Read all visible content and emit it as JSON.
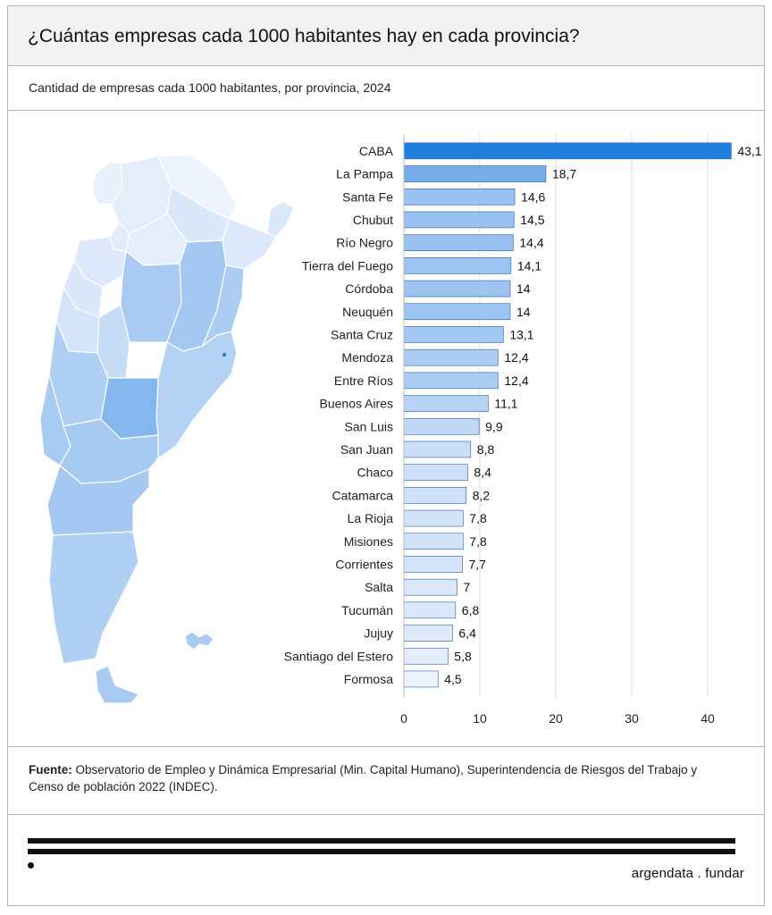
{
  "title": "¿Cuántas empresas cada 1000 habitantes hay en cada provincia?",
  "subtitle": "Cantidad de empresas cada 1000 habitantes, por provincia, 2024",
  "source_label": "Fuente:",
  "source_text": "Observatorio de Empleo y Dinámica Empresarial (Min. Capital Humano), Superintendencia de Riesgos del Trabajo y Censo de población 2022 (INDEC).",
  "brand": "argendata . fundar",
  "colors": {
    "highlight": "#1f80e0",
    "bar_border": "#2b5fa0",
    "map_stroke": "#ffffff"
  },
  "chart_data": {
    "type": "bar",
    "orientation": "horizontal",
    "categories": [
      "CABA",
      "La Pampa",
      "Santa Fe",
      "Chubut",
      "Río Negro",
      "Tierra del Fuego",
      "Córdoba",
      "Neuquén",
      "Santa Cruz",
      "Mendoza",
      "Entre Ríos",
      "Buenos Aires",
      "San Luis",
      "San Juan",
      "Chaco",
      "Catamarca",
      "La Rioja",
      "Misiones",
      "Corrientes",
      "Salta",
      "Tucumán",
      "Jujuy",
      "Santiago del Estero",
      "Formosa"
    ],
    "values": [
      43.1,
      18.7,
      14.6,
      14.5,
      14.4,
      14.1,
      14,
      14,
      13.1,
      12.4,
      12.4,
      11.1,
      9.9,
      8.8,
      8.4,
      8.2,
      7.8,
      7.8,
      7.7,
      7,
      6.8,
      6.4,
      5.8,
      4.5
    ],
    "value_labels": [
      "43,1",
      "18,7",
      "14,6",
      "14,5",
      "14,4",
      "14,1",
      "14",
      "14",
      "13,1",
      "12,4",
      "12,4",
      "11,1",
      "9,9",
      "8,8",
      "8,4",
      "8,2",
      "7,8",
      "7,8",
      "7,7",
      "7",
      "6,8",
      "6,4",
      "5,8",
      "4,5"
    ],
    "xticks": [
      0,
      10,
      20,
      30,
      40
    ],
    "xlim": [
      0,
      45
    ],
    "grid": true
  }
}
